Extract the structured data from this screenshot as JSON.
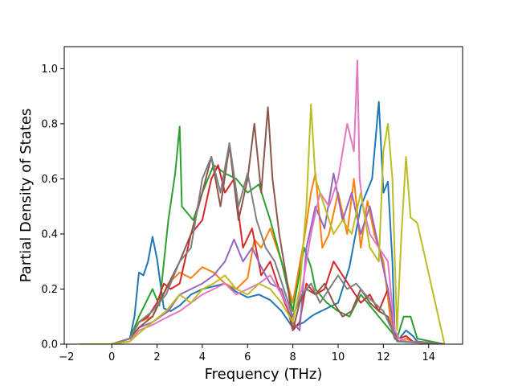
{
  "chart_data": {
    "type": "line",
    "title": "",
    "xlabel": "Frequency (THz)",
    "ylabel": "Partial Density of States",
    "xlim": [
      -2.1,
      15.5
    ],
    "ylim": [
      0,
      1.08
    ],
    "xticks": [
      -2,
      0,
      2,
      4,
      6,
      8,
      10,
      12,
      14
    ],
    "yticks": [
      0.0,
      0.2,
      0.4,
      0.6,
      0.8,
      1.0
    ],
    "xtick_labels": [
      "−2",
      "0",
      "2",
      "4",
      "6",
      "8",
      "10",
      "12",
      "14"
    ],
    "ytick_labels": [
      "0.0",
      "0.2",
      "0.4",
      "0.6",
      "0.8",
      "1.0"
    ],
    "grid": false,
    "legend": "none",
    "series": [
      {
        "color": "#1f77b4",
        "x": [
          -1.4,
          0,
          0.8,
          1.0,
          1.2,
          1.4,
          1.6,
          1.8,
          2.0,
          2.3,
          2.6,
          3.0,
          3.5,
          4.0,
          4.5,
          5.0,
          5.5,
          6.0,
          6.5,
          7.0,
          7.5,
          8.0,
          8.5,
          8.8,
          9.0,
          9.5,
          10.0,
          10.5,
          11.0,
          11.5,
          11.8,
          12.0,
          12.2,
          12.4,
          12.5,
          12.7,
          13.0,
          13.3,
          13.5,
          14.7
        ],
        "y": [
          0,
          0,
          0.02,
          0.1,
          0.26,
          0.25,
          0.3,
          0.39,
          0.31,
          0.13,
          0.12,
          0.14,
          0.18,
          0.2,
          0.21,
          0.22,
          0.19,
          0.17,
          0.18,
          0.16,
          0.12,
          0.06,
          0.08,
          0.1,
          0.11,
          0.13,
          0.15,
          0.28,
          0.5,
          0.6,
          0.88,
          0.55,
          0.59,
          0.3,
          0.04,
          0.02,
          0.05,
          0.03,
          0.01,
          0
        ]
      },
      {
        "color": "#ff7f0e",
        "x": [
          -1.4,
          0,
          0.8,
          1.2,
          1.8,
          2.5,
          3.0,
          3.5,
          4.0,
          4.5,
          5.0,
          5.5,
          6.0,
          6.3,
          6.6,
          7.0,
          7.5,
          8.0,
          8.5,
          8.8,
          9.0,
          9.3,
          9.6,
          10.0,
          10.4,
          10.7,
          11.0,
          11.3,
          11.6,
          12.0,
          12.3,
          12.5,
          12.7,
          13.0,
          13.3,
          14.7
        ],
        "y": [
          0,
          0,
          0.02,
          0.08,
          0.1,
          0.22,
          0.26,
          0.24,
          0.28,
          0.26,
          0.22,
          0.2,
          0.24,
          0.38,
          0.35,
          0.42,
          0.3,
          0.15,
          0.38,
          0.55,
          0.62,
          0.35,
          0.4,
          0.55,
          0.4,
          0.6,
          0.35,
          0.52,
          0.4,
          0.3,
          0.1,
          0.02,
          0.01,
          0.02,
          0.01,
          0
        ]
      },
      {
        "color": "#2ca02c",
        "x": [
          -1.4,
          0,
          0.8,
          1.2,
          1.5,
          1.8,
          2.1,
          2.5,
          2.8,
          3.0,
          3.1,
          3.3,
          3.6,
          4.0,
          4.5,
          5.0,
          5.5,
          6.0,
          6.5,
          7.0,
          7.5,
          8.0,
          8.5,
          8.8,
          9.0,
          9.5,
          10.0,
          10.5,
          11.0,
          11.3,
          11.6,
          12.0,
          12.4,
          12.6,
          12.9,
          13.2,
          13.5,
          14.7
        ],
        "y": [
          0,
          0,
          0.02,
          0.1,
          0.15,
          0.2,
          0.14,
          0.45,
          0.62,
          0.79,
          0.5,
          0.48,
          0.45,
          0.55,
          0.65,
          0.62,
          0.6,
          0.55,
          0.58,
          0.45,
          0.3,
          0.12,
          0.35,
          0.28,
          0.2,
          0.15,
          0.12,
          0.1,
          0.18,
          0.15,
          0.12,
          0.08,
          0.04,
          0.02,
          0.1,
          0.1,
          0.02,
          0
        ]
      },
      {
        "color": "#d62728",
        "x": [
          -1.4,
          0,
          0.8,
          1.2,
          1.6,
          2.0,
          2.3,
          2.6,
          3.0,
          3.5,
          4.0,
          4.4,
          4.7,
          5.0,
          5.4,
          5.8,
          6.2,
          6.6,
          7.0,
          7.4,
          7.8,
          8.0,
          8.3,
          8.6,
          9.0,
          9.4,
          9.8,
          10.2,
          10.6,
          11.0,
          11.4,
          11.8,
          12.2,
          12.5,
          12.7,
          13.0,
          13.3,
          14.7
        ],
        "y": [
          0,
          0,
          0.02,
          0.08,
          0.1,
          0.15,
          0.22,
          0.2,
          0.22,
          0.4,
          0.45,
          0.6,
          0.65,
          0.55,
          0.6,
          0.35,
          0.42,
          0.25,
          0.3,
          0.2,
          0.12,
          0.05,
          0.08,
          0.22,
          0.18,
          0.2,
          0.3,
          0.25,
          0.2,
          0.15,
          0.18,
          0.12,
          0.2,
          0.04,
          0.02,
          0.03,
          0.01,
          0
        ]
      },
      {
        "color": "#9467bd",
        "x": [
          -1.4,
          0,
          0.8,
          1.2,
          1.8,
          2.5,
          3.0,
          3.5,
          4.0,
          4.5,
          5.0,
          5.4,
          5.8,
          6.2,
          6.6,
          7.0,
          7.5,
          8.0,
          8.3,
          8.6,
          9.0,
          9.4,
          9.8,
          10.2,
          10.6,
          11.0,
          11.4,
          11.8,
          12.2,
          12.5,
          12.7,
          13.0,
          14.7
        ],
        "y": [
          0,
          0,
          0.02,
          0.06,
          0.08,
          0.12,
          0.18,
          0.2,
          0.22,
          0.25,
          0.3,
          0.38,
          0.3,
          0.35,
          0.28,
          0.22,
          0.2,
          0.08,
          0.05,
          0.35,
          0.5,
          0.42,
          0.62,
          0.45,
          0.55,
          0.4,
          0.5,
          0.35,
          0.2,
          0.03,
          0.02,
          0.01,
          0
        ]
      },
      {
        "color": "#8c564b",
        "x": [
          -1.4,
          0,
          0.8,
          1.2,
          1.8,
          2.4,
          3.0,
          3.5,
          4.0,
          4.4,
          4.8,
          5.2,
          5.6,
          6.0,
          6.3,
          6.6,
          6.9,
          7.1,
          7.4,
          7.8,
          8.0,
          8.3,
          8.6,
          9.0,
          9.4,
          9.8,
          10.2,
          10.6,
          11.0,
          11.4,
          11.8,
          12.2,
          12.5,
          12.7,
          14.7
        ],
        "y": [
          0,
          0,
          0.02,
          0.06,
          0.1,
          0.2,
          0.3,
          0.4,
          0.55,
          0.68,
          0.5,
          0.72,
          0.45,
          0.6,
          0.8,
          0.55,
          0.86,
          0.6,
          0.4,
          0.2,
          0.05,
          0.15,
          0.2,
          0.18,
          0.22,
          0.15,
          0.1,
          0.12,
          0.2,
          0.15,
          0.12,
          0.1,
          0.02,
          0.01,
          0
        ]
      },
      {
        "color": "#e377c2",
        "x": [
          -1.4,
          0,
          0.8,
          1.2,
          1.8,
          2.5,
          3.0,
          3.5,
          4.0,
          4.5,
          5.0,
          5.5,
          6.0,
          6.5,
          7.0,
          7.5,
          8.0,
          8.4,
          8.8,
          9.2,
          9.6,
          10.0,
          10.4,
          10.7,
          10.85,
          10.95,
          11.1,
          11.4,
          11.8,
          12.2,
          12.5,
          12.7,
          13.0,
          14.7
        ],
        "y": [
          0,
          0,
          0.01,
          0.05,
          0.07,
          0.1,
          0.12,
          0.15,
          0.18,
          0.2,
          0.22,
          0.18,
          0.2,
          0.22,
          0.25,
          0.18,
          0.1,
          0.2,
          0.4,
          0.55,
          0.5,
          0.6,
          0.8,
          0.7,
          1.03,
          0.6,
          0.5,
          0.4,
          0.35,
          0.3,
          0.05,
          0.02,
          0.01,
          0
        ]
      },
      {
        "color": "#7f7f7f",
        "x": [
          -1.4,
          0,
          0.8,
          1.2,
          1.8,
          2.4,
          3.0,
          3.5,
          4.0,
          4.4,
          4.8,
          5.2,
          5.6,
          6.0,
          6.4,
          6.8,
          7.2,
          7.6,
          8.0,
          8.4,
          8.8,
          9.2,
          9.6,
          10.0,
          10.4,
          10.8,
          11.2,
          11.6,
          12.0,
          12.4,
          12.6,
          14.7
        ],
        "y": [
          0,
          0,
          0.02,
          0.08,
          0.12,
          0.18,
          0.3,
          0.35,
          0.6,
          0.68,
          0.55,
          0.73,
          0.5,
          0.62,
          0.45,
          0.35,
          0.3,
          0.2,
          0.1,
          0.18,
          0.22,
          0.15,
          0.2,
          0.25,
          0.2,
          0.22,
          0.18,
          0.15,
          0.12,
          0.05,
          0.01,
          0
        ]
      },
      {
        "color": "#bcbd22",
        "x": [
          -1.4,
          0,
          0.8,
          1.2,
          1.8,
          2.4,
          3.0,
          3.5,
          4.0,
          4.5,
          5.0,
          5.5,
          6.0,
          6.5,
          7.0,
          7.5,
          8.0,
          8.3,
          8.6,
          8.8,
          9.0,
          9.4,
          9.8,
          10.2,
          10.6,
          11.0,
          11.4,
          11.8,
          12.0,
          12.2,
          12.4,
          12.6,
          12.8,
          13.0,
          13.2,
          13.5,
          14.7
        ],
        "y": [
          0,
          0,
          0.01,
          0.04,
          0.08,
          0.12,
          0.18,
          0.15,
          0.2,
          0.22,
          0.25,
          0.2,
          0.18,
          0.22,
          0.2,
          0.15,
          0.08,
          0.2,
          0.5,
          0.87,
          0.6,
          0.5,
          0.4,
          0.45,
          0.4,
          0.55,
          0.35,
          0.3,
          0.7,
          0.8,
          0.6,
          0.05,
          0.4,
          0.68,
          0.46,
          0.44,
          0
        ]
      }
    ]
  }
}
